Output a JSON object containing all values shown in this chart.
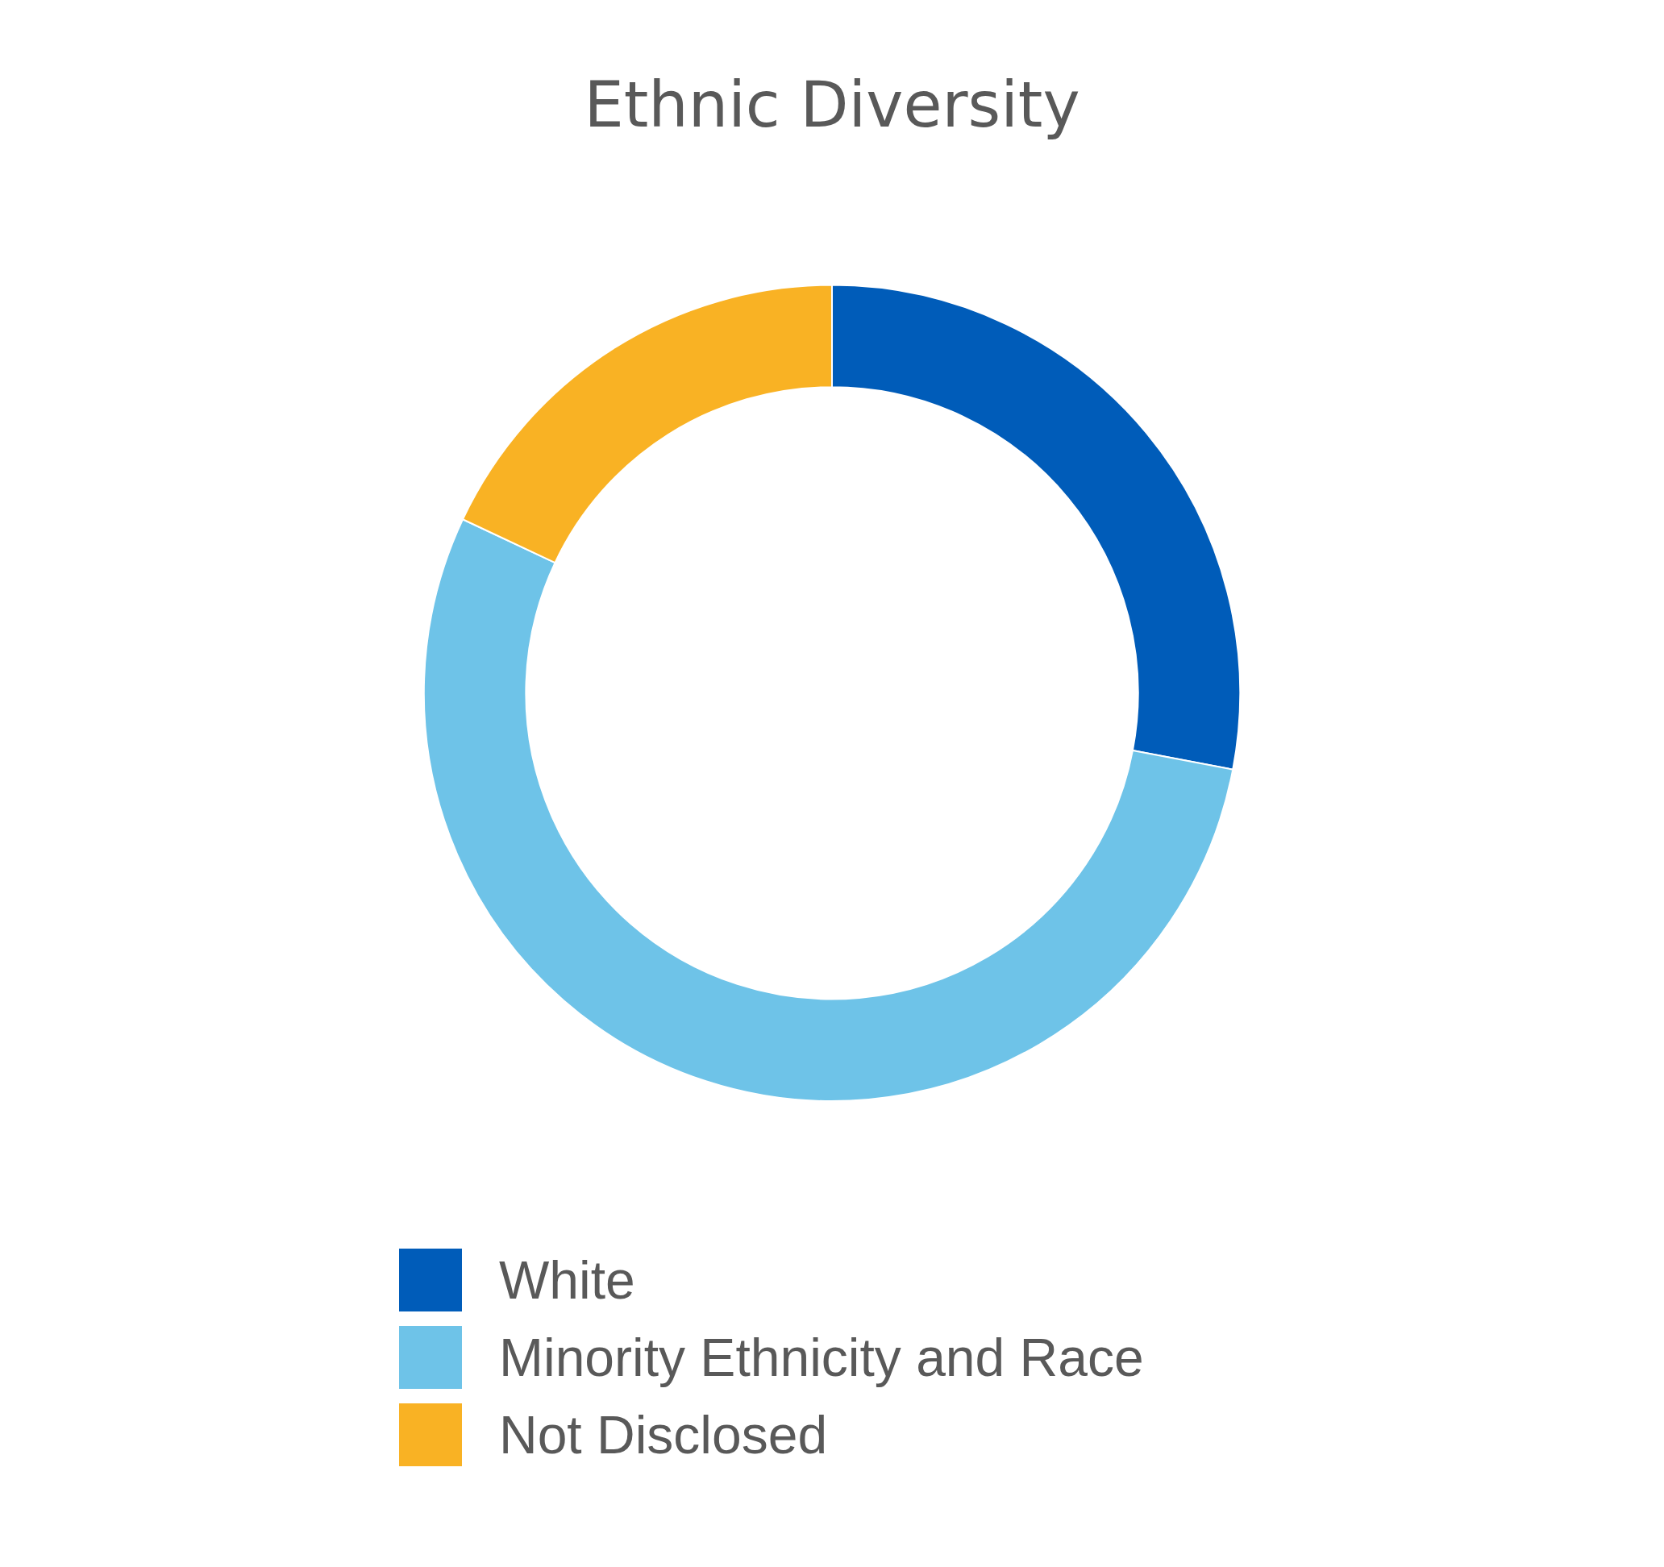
{
  "chart_data": {
    "type": "donut",
    "title": "Ethnic Diversity",
    "categories": [
      "White",
      "Minority Ethnicity and Race",
      "Not Disclosed"
    ],
    "values": [
      28,
      54,
      18
    ],
    "colors": [
      "#005cb9",
      "#6ec3e8",
      "#f9b224"
    ],
    "legend": "bottom"
  }
}
